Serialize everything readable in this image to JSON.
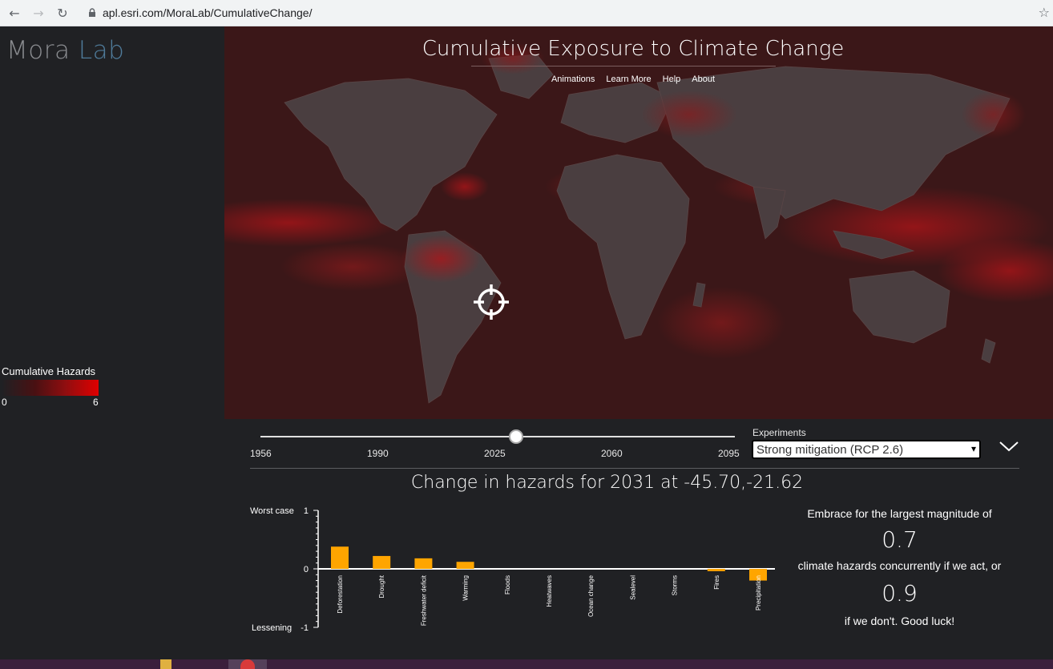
{
  "browser": {
    "url": "apl.esri.com/MoraLab/CumulativeChange/",
    "back_icon": "arrow-left-icon",
    "forward_icon": "arrow-right-icon",
    "reload_icon": "reload-icon",
    "lock_icon": "lock-icon",
    "star_icon": "star-icon"
  },
  "brand": {
    "part1": "Mora",
    "part2": "Lab"
  },
  "legend": {
    "title": "Cumulative Hazards",
    "min": "0",
    "max": "6"
  },
  "header": {
    "title": "Cumulative Exposure to Climate Change",
    "nav": [
      "Animations",
      "Learn More",
      "Help",
      "About"
    ]
  },
  "timeline": {
    "years": [
      "1956",
      "1990",
      "2025",
      "2060",
      "2095"
    ],
    "current_year": 2031
  },
  "experiments": {
    "label": "Experiments",
    "selected": "Strong mitigation (RCP 2.6)"
  },
  "chart_title": "Change in hazards for 2031 at -45.70,-21.62",
  "summary": {
    "line1": "Embrace for the largest magnitude of",
    "value_act": "0.7",
    "line2": "climate hazards concurrently if we act, or",
    "value_no_act": "0.9",
    "line3": "if we don't. Good luck!"
  },
  "chart_data": {
    "type": "bar",
    "categories": [
      "Deforestation",
      "Drought",
      "Freshwater deficit",
      "Warming",
      "Floods",
      "Heatwaves",
      "Ocean change",
      "Sealevel",
      "Storms",
      "Fires",
      "Precipitation"
    ],
    "values": [
      0.38,
      0.22,
      0.18,
      0.12,
      0,
      0,
      0,
      0,
      0,
      -0.04,
      -0.2
    ],
    "ylim": [
      -1,
      1
    ],
    "y_ticks": [
      "1",
      "0",
      "-1"
    ],
    "y_top_label": "Worst case",
    "y_bottom_label": "Lessening",
    "bar_color": "#ffa500"
  },
  "colors": {
    "accent": "#ffa500",
    "map_base": "#3a1516",
    "legend_max": "#e00000"
  }
}
